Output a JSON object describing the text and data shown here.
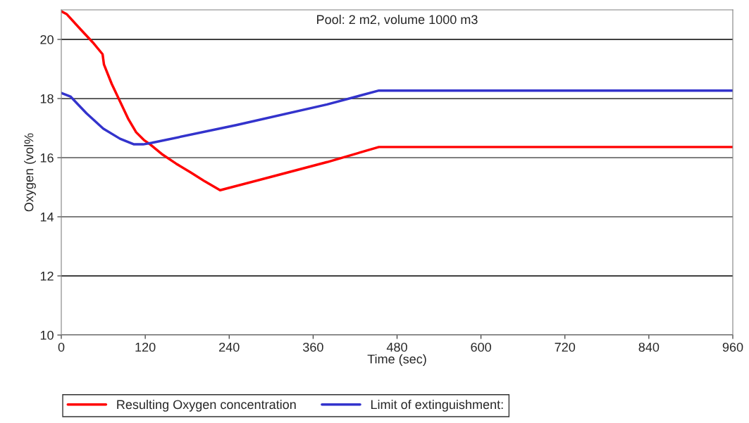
{
  "chart_data": {
    "type": "line",
    "title": "Pool: 2 m2, volume 1000 m3",
    "xlabel": "Time (sec)",
    "ylabel": "Oxygen (vol%",
    "xlim": [
      0,
      960
    ],
    "xticks": [
      0,
      120,
      240,
      360,
      480,
      600,
      720,
      840,
      960
    ],
    "ylim": [
      10,
      21
    ],
    "yticks": [
      10,
      12,
      14,
      16,
      18,
      20
    ],
    "grid": "y",
    "legend": "bottom",
    "marker": "none",
    "line_style": "solid",
    "series": [
      {
        "name": "Resulting Oxygen concentration",
        "color": "#ff0000",
        "x": [
          0,
          8,
          26,
          45,
          59,
          61,
          72,
          84,
          96,
          107,
          118,
          127,
          145,
          164,
          185,
          205,
          227,
          300,
          380,
          454,
          960
        ],
        "values": [
          20.95,
          20.85,
          20.38,
          19.9,
          19.5,
          19.15,
          18.5,
          17.9,
          17.3,
          16.86,
          16.6,
          16.45,
          16.1,
          15.8,
          15.5,
          15.2,
          14.9,
          15.35,
          15.85,
          16.36,
          16.36
        ]
      },
      {
        "name": "Limit of extinguishment:",
        "color": "#3333cc",
        "x": [
          0,
          13,
          36,
          60,
          84,
          104,
          117,
          129,
          250,
          380,
          454,
          960
        ],
        "values": [
          18.19,
          18.07,
          17.5,
          16.98,
          16.64,
          16.45,
          16.45,
          16.5,
          17.1,
          17.8,
          18.27,
          18.27
        ]
      }
    ]
  }
}
